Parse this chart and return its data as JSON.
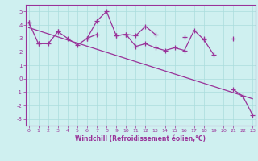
{
  "x_all": [
    0,
    1,
    2,
    3,
    4,
    5,
    6,
    7,
    8,
    9,
    10,
    11,
    12,
    13,
    14,
    15,
    16,
    17,
    18,
    19,
    20,
    21,
    22,
    23
  ],
  "zigzag": [
    4.2,
    2.6,
    2.6,
    3.5,
    3.0,
    2.5,
    3.0,
    4.3,
    5.0,
    3.2,
    3.3,
    2.4,
    2.6,
    2.3,
    2.1,
    2.3,
    2.1,
    3.6,
    2.9,
    1.8,
    null,
    null,
    null,
    null
  ],
  "flat": [
    null,
    2.6,
    null,
    3.5,
    null,
    null,
    3.0,
    3.3,
    null,
    3.2,
    3.3,
    3.2,
    3.9,
    3.3,
    null,
    null,
    3.1,
    null,
    3.0,
    null,
    null,
    3.0,
    null,
    null
  ],
  "decline": [
    4.2,
    null,
    null,
    null,
    null,
    null,
    null,
    null,
    null,
    null,
    null,
    null,
    null,
    null,
    null,
    null,
    null,
    null,
    null,
    null,
    null,
    -0.8,
    -1.3,
    -2.7
  ],
  "trend_x": [
    0,
    23
  ],
  "trend_y": [
    3.8,
    -1.5
  ],
  "color": "#993399",
  "bg_color": "#cff0f0",
  "grid_color": "#aadddd",
  "ylim": [
    -3.5,
    5.5
  ],
  "xlim": [
    -0.3,
    23.3
  ],
  "yticks": [
    -3,
    -2,
    -1,
    0,
    1,
    2,
    3,
    4,
    5
  ],
  "xticks": [
    0,
    1,
    2,
    3,
    4,
    5,
    6,
    7,
    8,
    9,
    10,
    11,
    12,
    13,
    14,
    15,
    16,
    17,
    18,
    19,
    20,
    21,
    22,
    23
  ],
  "xlabel": "Windchill (Refroidissement éolien,°C)"
}
